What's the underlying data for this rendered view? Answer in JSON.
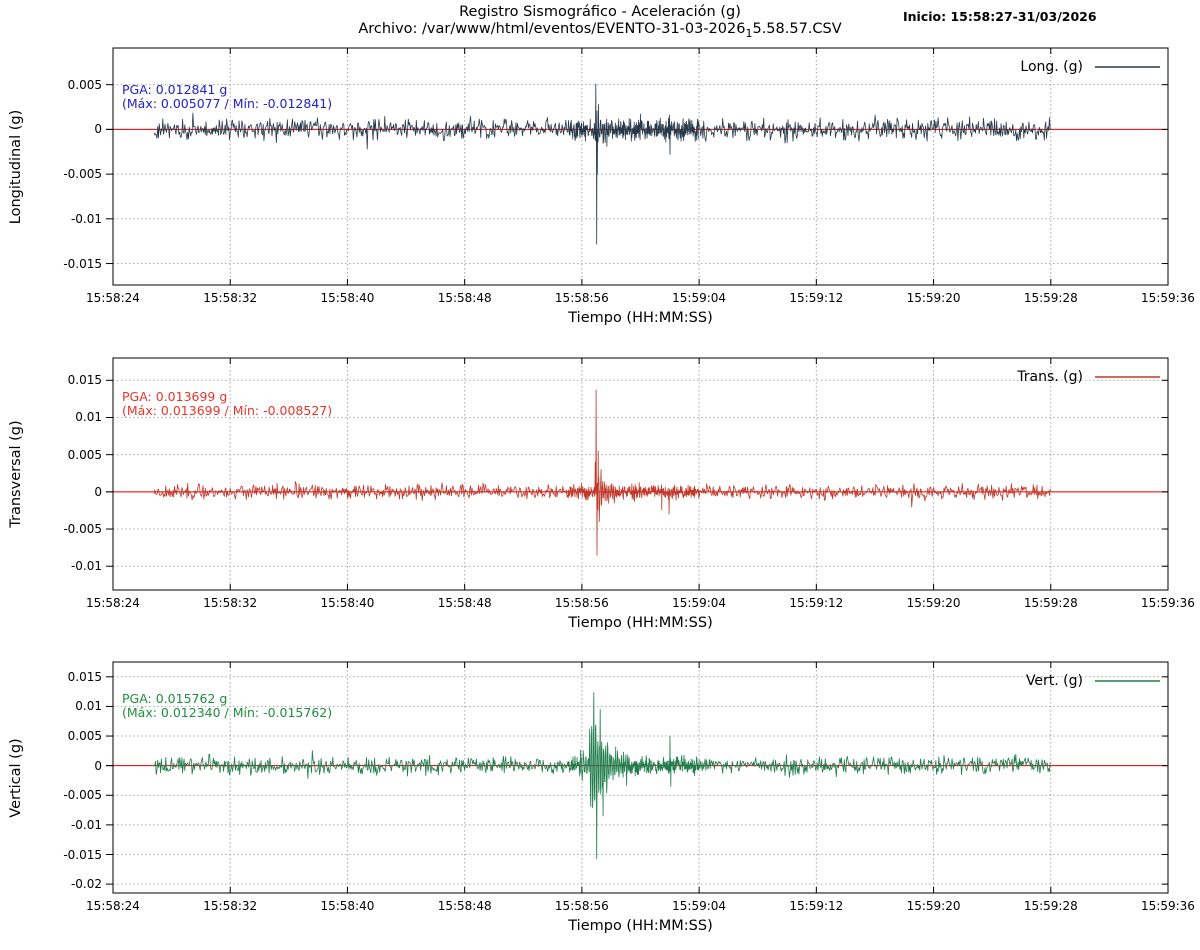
{
  "header": {
    "title": "Registro Sismográfico - Aceleración (g)",
    "file_prefix": "Archivo: /var/www/html/eventos/EVENTO-31-03-2026",
    "file_sub": "1",
    "file_suffix": "5.58.57.CSV",
    "inicio": "Inicio: 15:58:27-31/03/2026"
  },
  "axis": {
    "xlabel": "Tiempo (HH:MM:SS)",
    "x_range_s": [
      24,
      96
    ],
    "x_ticks": [
      {
        "s": 24,
        "label": "15:58:24"
      },
      {
        "s": 32,
        "label": "15:58:32"
      },
      {
        "s": 40,
        "label": "15:58:40"
      },
      {
        "s": 48,
        "label": "15:58:48"
      },
      {
        "s": 56,
        "label": "15:58:56"
      },
      {
        "s": 64,
        "label": "15:59:04"
      },
      {
        "s": 72,
        "label": "15:59:12"
      },
      {
        "s": 80,
        "label": "15:59:20"
      },
      {
        "s": 88,
        "label": "15:59:28"
      },
      {
        "s": 96,
        "label": "15:59:36"
      }
    ]
  },
  "colors": {
    "zero_line": "#e60000",
    "grid": "#a8a8a8",
    "border": "#000000"
  },
  "chart_data": [
    {
      "type": "line",
      "id": "longitudinal",
      "ylabel": "Longitudinal (g)",
      "legend": "Long. (g)",
      "color": "#26394a",
      "annotation_color": "#2222cc",
      "annotation": [
        "PGA: 0.012841 g",
        "(Máx: 0.005077 / Mín: -0.012841)"
      ],
      "pga_g": 0.012841,
      "max_g": 0.005077,
      "min_g": -0.012841,
      "ylim": [
        -0.0174,
        0.0091
      ],
      "y_ticks": [
        {
          "v": 0.005,
          "label": "0.005"
        },
        {
          "v": 0,
          "label": "0"
        },
        {
          "v": -0.005,
          "label": "-0.005"
        },
        {
          "v": -0.01,
          "label": "-0.01"
        },
        {
          "v": -0.015,
          "label": "-0.015"
        }
      ],
      "signal": {
        "start_s": 26.8,
        "end_s": 88,
        "noise_amp": 0.0009,
        "rings": [
          {
            "t0": 57,
            "amp": 0.0016,
            "decay": 1.6,
            "freq": 8
          }
        ],
        "peaks": [
          [
            56.94,
            0.005077
          ],
          [
            57,
            -0.012841
          ],
          [
            57.05,
            -0.005
          ],
          [
            57.12,
            0.0028
          ],
          [
            61.96,
            0.0016
          ],
          [
            62,
            -0.0028
          ]
        ]
      }
    },
    {
      "type": "line",
      "id": "transversal",
      "ylabel": "Transversal (g)",
      "legend": "Trans. (g)",
      "color": "#c0392b",
      "annotation_color": "#e8362a",
      "annotation": [
        "PGA: 0.013699 g",
        "(Máx: 0.013699 / Mín: -0.008527)"
      ],
      "pga_g": 0.013699,
      "max_g": 0.013699,
      "min_g": -0.008527,
      "ylim": [
        -0.0132,
        0.018
      ],
      "y_ticks": [
        {
          "v": 0.015,
          "label": "0.015"
        },
        {
          "v": 0.01,
          "label": "0.01"
        },
        {
          "v": 0.005,
          "label": "0.005"
        },
        {
          "v": 0,
          "label": "0"
        },
        {
          "v": -0.005,
          "label": "-0.005"
        },
        {
          "v": -0.01,
          "label": "-0.01"
        }
      ],
      "signal": {
        "start_s": 26.8,
        "end_s": 88,
        "noise_amp": 0.00075,
        "rings": [
          {
            "t0": 57,
            "amp": 0.0022,
            "decay": 1.3,
            "freq": 8
          }
        ],
        "peaks": [
          [
            56.9,
            0.004
          ],
          [
            56.96,
            0.013699
          ],
          [
            57.02,
            -0.008527
          ],
          [
            57.1,
            0.0055
          ],
          [
            57.18,
            -0.004
          ],
          [
            57.3,
            0.003
          ],
          [
            61.45,
            -0.0024
          ],
          [
            61.95,
            -0.003
          ]
        ]
      }
    },
    {
      "type": "line",
      "id": "vertical",
      "ylabel": "Vertical (g)",
      "legend": "Vert. (g)",
      "color": "#1e7d4b",
      "annotation_color": "#1e8f3e",
      "annotation": [
        "PGA: 0.015762 g",
        "(Máx: 0.012340 / Mín: -0.015762)"
      ],
      "pga_g": 0.015762,
      "max_g": 0.01234,
      "min_g": -0.015762,
      "ylim": [
        -0.0215,
        0.0175
      ],
      "y_ticks": [
        {
          "v": 0.015,
          "label": "0.015"
        },
        {
          "v": 0.01,
          "label": "0.01"
        },
        {
          "v": 0.005,
          "label": "0.005"
        },
        {
          "v": 0,
          "label": "0"
        },
        {
          "v": -0.005,
          "label": "-0.005"
        },
        {
          "v": -0.01,
          "label": "-0.01"
        },
        {
          "v": -0.015,
          "label": "-0.015"
        },
        {
          "v": -0.02,
          "label": "-0.02"
        }
      ],
      "signal": {
        "start_s": 26.8,
        "end_s": 88,
        "noise_amp": 0.00115,
        "rings": [
          {
            "t0": 55.9,
            "amp": 0.0022,
            "decay": 1.6,
            "freq": 6
          },
          {
            "t0": 56.5,
            "amp": 0.0085,
            "decay": 0.85,
            "freq": 7.3
          }
        ],
        "peaks": [
          [
            56.55,
            0.005
          ],
          [
            56.8,
            0.01234
          ],
          [
            57,
            -0.015762
          ],
          [
            57.25,
            0.0095
          ],
          [
            57.45,
            -0.0085
          ],
          [
            62,
            0.005
          ],
          [
            62.06,
            -0.0035
          ]
        ]
      }
    }
  ]
}
